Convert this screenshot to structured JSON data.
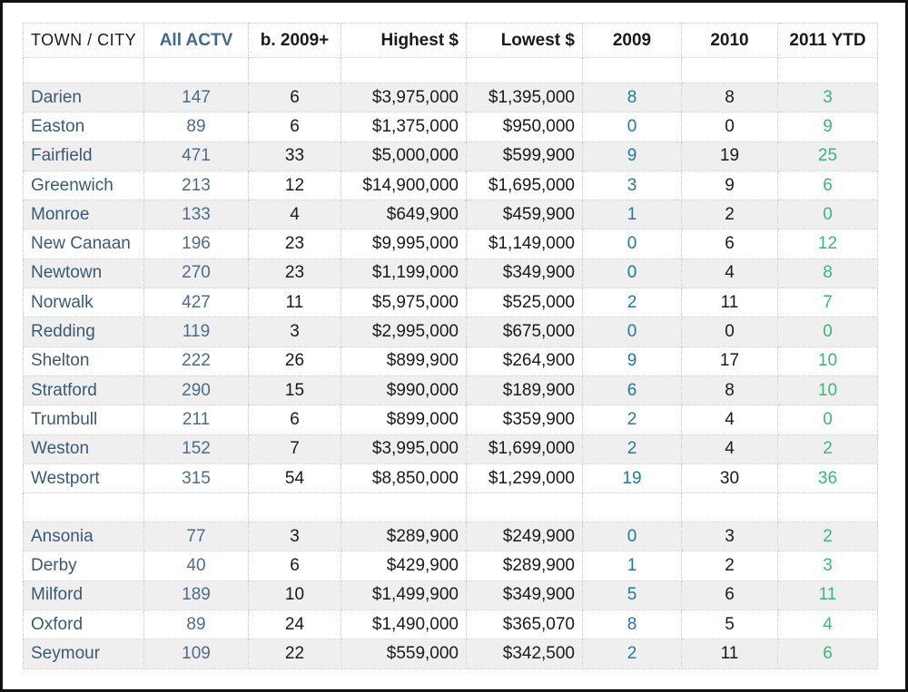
{
  "table": {
    "columns": [
      {
        "label": "TOWN / CITY",
        "align": "left",
        "header_color": "#1a1a1a",
        "cell_color": "#3b5a72"
      },
      {
        "label": "All ACTV",
        "align": "center",
        "header_color": "#406a8e",
        "cell_color": "#4a6d8c"
      },
      {
        "label": "b. 2009+",
        "align": "center",
        "header_color": "#1a1a1a",
        "cell_color": "#1a1a1a"
      },
      {
        "label": "Highest $",
        "align": "right",
        "header_color": "#1a1a1a",
        "cell_color": "#1a1a1a"
      },
      {
        "label": "Lowest $",
        "align": "right",
        "header_color": "#1a1a1a",
        "cell_color": "#1a1a1a"
      },
      {
        "label": "2009",
        "align": "center",
        "header_color": "#1a1a1a",
        "cell_color": "#1f7a9e"
      },
      {
        "label": "2010",
        "align": "center",
        "header_color": "#1a1a1a",
        "cell_color": "#1a1a1a"
      },
      {
        "label": "2011 YTD",
        "align": "center",
        "header_color": "#1a1a1a",
        "cell_color": "#38b87c"
      }
    ],
    "groups": [
      {
        "rows": [
          [
            "Darien",
            "147",
            "6",
            "$3,975,000",
            "$1,395,000",
            "8",
            "8",
            "3"
          ],
          [
            "Easton",
            "89",
            "6",
            "$1,375,000",
            "$950,000",
            "0",
            "0",
            "9"
          ],
          [
            "Fairfield",
            "471",
            "33",
            "$5,000,000",
            "$599,900",
            "9",
            "19",
            "25"
          ],
          [
            "Greenwich",
            "213",
            "12",
            "$14,900,000",
            "$1,695,000",
            "3",
            "9",
            "6"
          ],
          [
            "Monroe",
            "133",
            "4",
            "$649,900",
            "$459,900",
            "1",
            "2",
            "0"
          ],
          [
            "New Canaan",
            "196",
            "23",
            "$9,995,000",
            "$1,149,000",
            "0",
            "6",
            "12"
          ],
          [
            "Newtown",
            "270",
            "23",
            "$1,199,000",
            "$349,900",
            "0",
            "4",
            "8"
          ],
          [
            "Norwalk",
            "427",
            "11",
            "$5,975,000",
            "$525,000",
            "2",
            "11",
            "7"
          ],
          [
            "Redding",
            "119",
            "3",
            "$2,995,000",
            "$675,000",
            "0",
            "0",
            "0"
          ],
          [
            "Shelton",
            "222",
            "26",
            "$899,900",
            "$264,900",
            "9",
            "17",
            "10"
          ],
          [
            "Stratford",
            "290",
            "15",
            "$990,000",
            "$189,900",
            "6",
            "8",
            "10"
          ],
          [
            "Trumbull",
            "211",
            "6",
            "$899,000",
            "$359,900",
            "2",
            "4",
            "0"
          ],
          [
            "Weston",
            "152",
            "7",
            "$3,995,000",
            "$1,699,000",
            "2",
            "4",
            "2"
          ],
          [
            "Westport",
            "315",
            "54",
            "$8,850,000",
            "$1,299,000",
            "19",
            "30",
            "36"
          ]
        ]
      },
      {
        "rows": [
          [
            "Ansonia",
            "77",
            "3",
            "$289,900",
            "$249,900",
            "0",
            "3",
            "2"
          ],
          [
            "Derby",
            "40",
            "6",
            "$429,900",
            "$289,900",
            "1",
            "2",
            "3"
          ],
          [
            "Milford",
            "189",
            "10",
            "$1,499,900",
            "$349,900",
            "5",
            "6",
            "11"
          ],
          [
            "Oxford",
            "89",
            "24",
            "$1,490,000",
            "$365,070",
            "8",
            "5",
            "4"
          ],
          [
            "Seymour",
            "109",
            "22",
            "$559,000",
            "$342,500",
            "2",
            "11",
            "6"
          ]
        ]
      }
    ]
  },
  "colors": {
    "row_shade": "#efefef",
    "grid_dotted": "#cdcdcd",
    "frame_border": "#111111",
    "town_blue": "#3b5a72",
    "actv_blue": "#4a6d8c",
    "header_accent_blue": "#406a8e",
    "col_2009_blue": "#1f7a9e",
    "col_2011_green": "#38b87c"
  }
}
